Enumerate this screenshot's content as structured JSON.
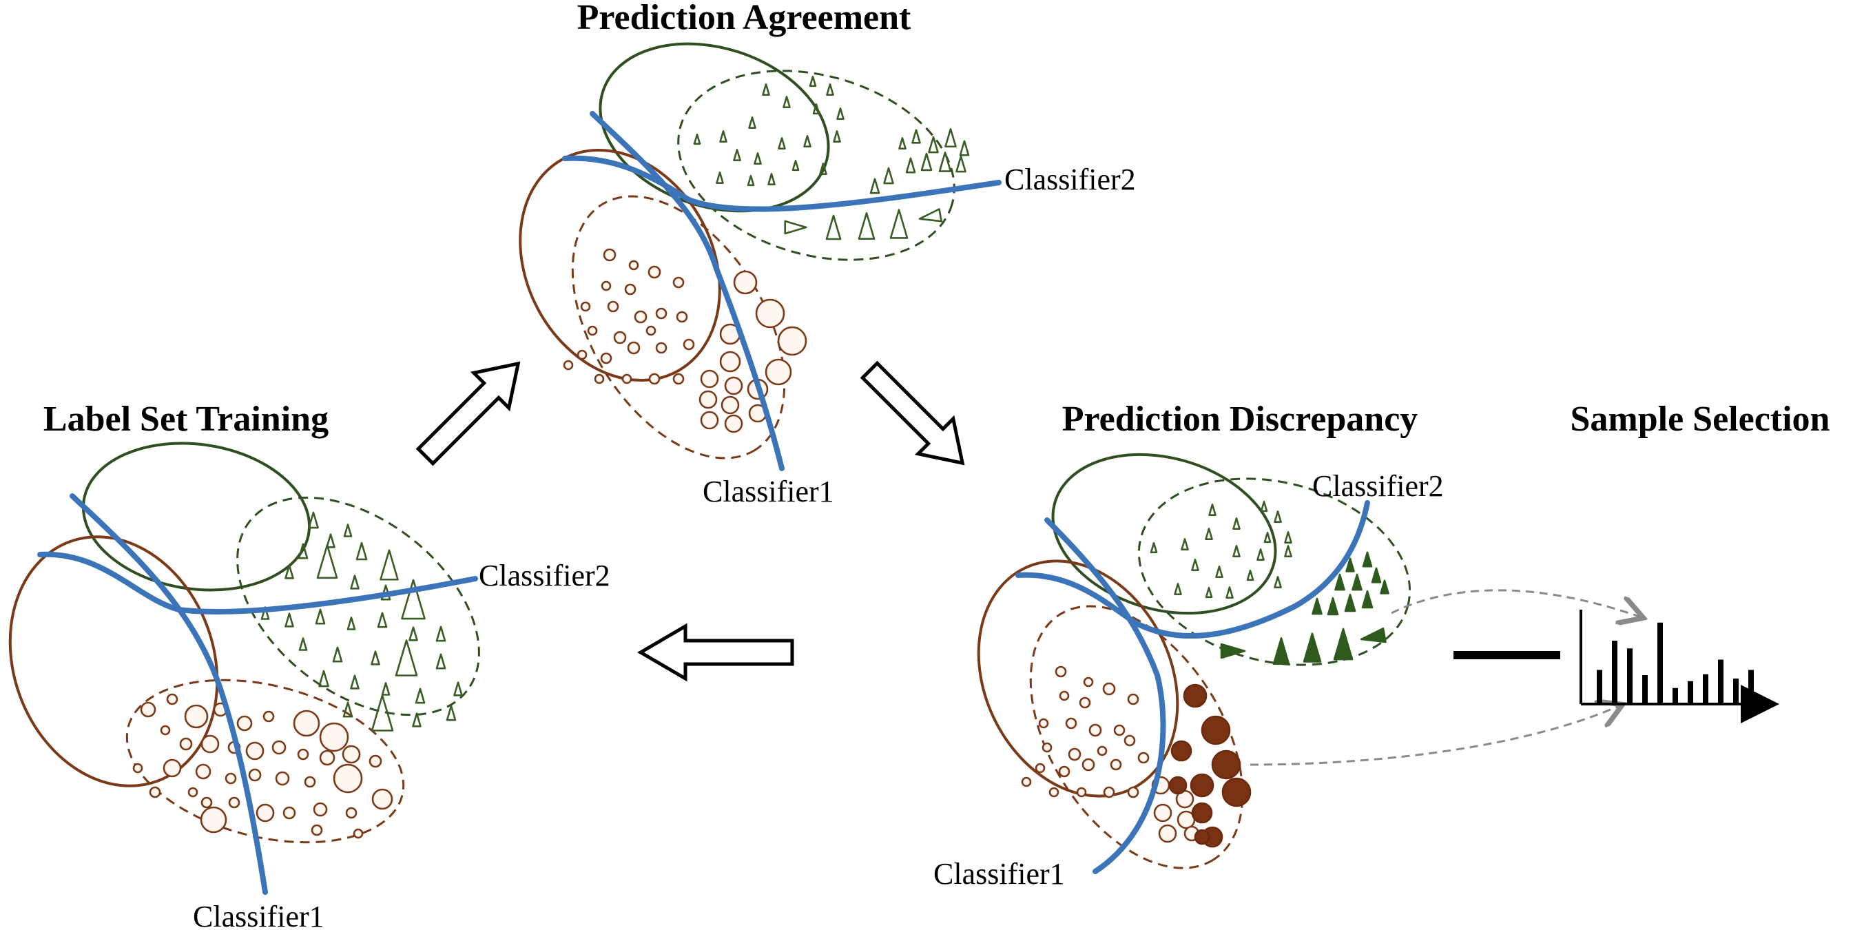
{
  "titles": {
    "label_set_training": "Label Set Training",
    "prediction_agreement": "Prediction Agreement",
    "prediction_discrepancy": "Prediction Discrepancy",
    "sample_selection": "Sample Selection"
  },
  "labels": {
    "classifier1": "Classifier1",
    "classifier2": "Classifier2"
  },
  "colors": {
    "green_fill": "#8fc46e",
    "orange_fill": "#f0925a",
    "green_stroke": "#2f4f20",
    "orange_stroke": "#7a3a18",
    "classifier_line": "#3b74b8"
  },
  "chart_data": {
    "type": "bar",
    "values": [
      0.38,
      0.72,
      0.63,
      0.32,
      0.93,
      0.17,
      0.25,
      0.33,
      0.5,
      0.28,
      0.38
    ]
  }
}
